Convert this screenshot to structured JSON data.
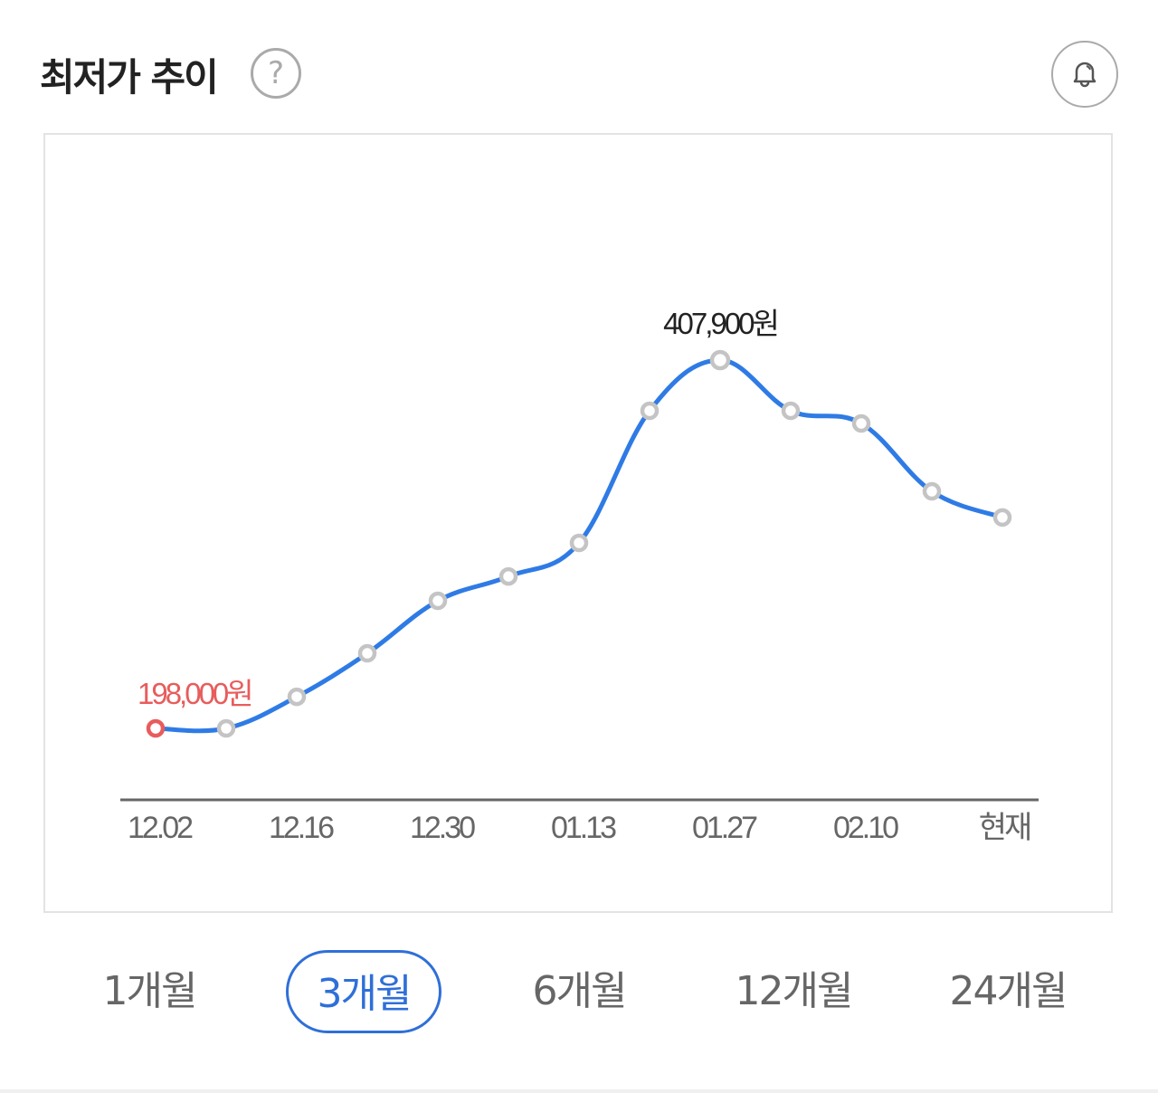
{
  "header": {
    "title": "최저가 추이",
    "help_icon": "?",
    "bell_icon": "bell-icon"
  },
  "colors": {
    "line": "#2f7be5",
    "marker": "#c4c4c4",
    "min": "#e85c5c",
    "selected": "#2f6fd8"
  },
  "chart_data": {
    "type": "line",
    "x": [
      "12.02",
      "12.09",
      "12.16",
      "12.23",
      "12.30",
      "01.06",
      "01.13",
      "01.20",
      "01.27",
      "02.03",
      "02.10",
      "02.17",
      "현재"
    ],
    "values": [
      198000,
      198000,
      216000,
      240800,
      270700,
      284600,
      303700,
      379000,
      407900,
      379000,
      371800,
      333100,
      318200
    ],
    "tick_labels": [
      "12.02",
      "12.16",
      "12.30",
      "01.13",
      "01.27",
      "02.10",
      "현재"
    ],
    "min_label": "198,000원",
    "max_label": "407,900원",
    "grid": false,
    "smooth": true
  },
  "ranges": [
    {
      "label": "1개월",
      "selected": false
    },
    {
      "label": "3개월",
      "selected": true
    },
    {
      "label": "6개월",
      "selected": false
    },
    {
      "label": "12개월",
      "selected": false
    },
    {
      "label": "24개월",
      "selected": false
    }
  ]
}
